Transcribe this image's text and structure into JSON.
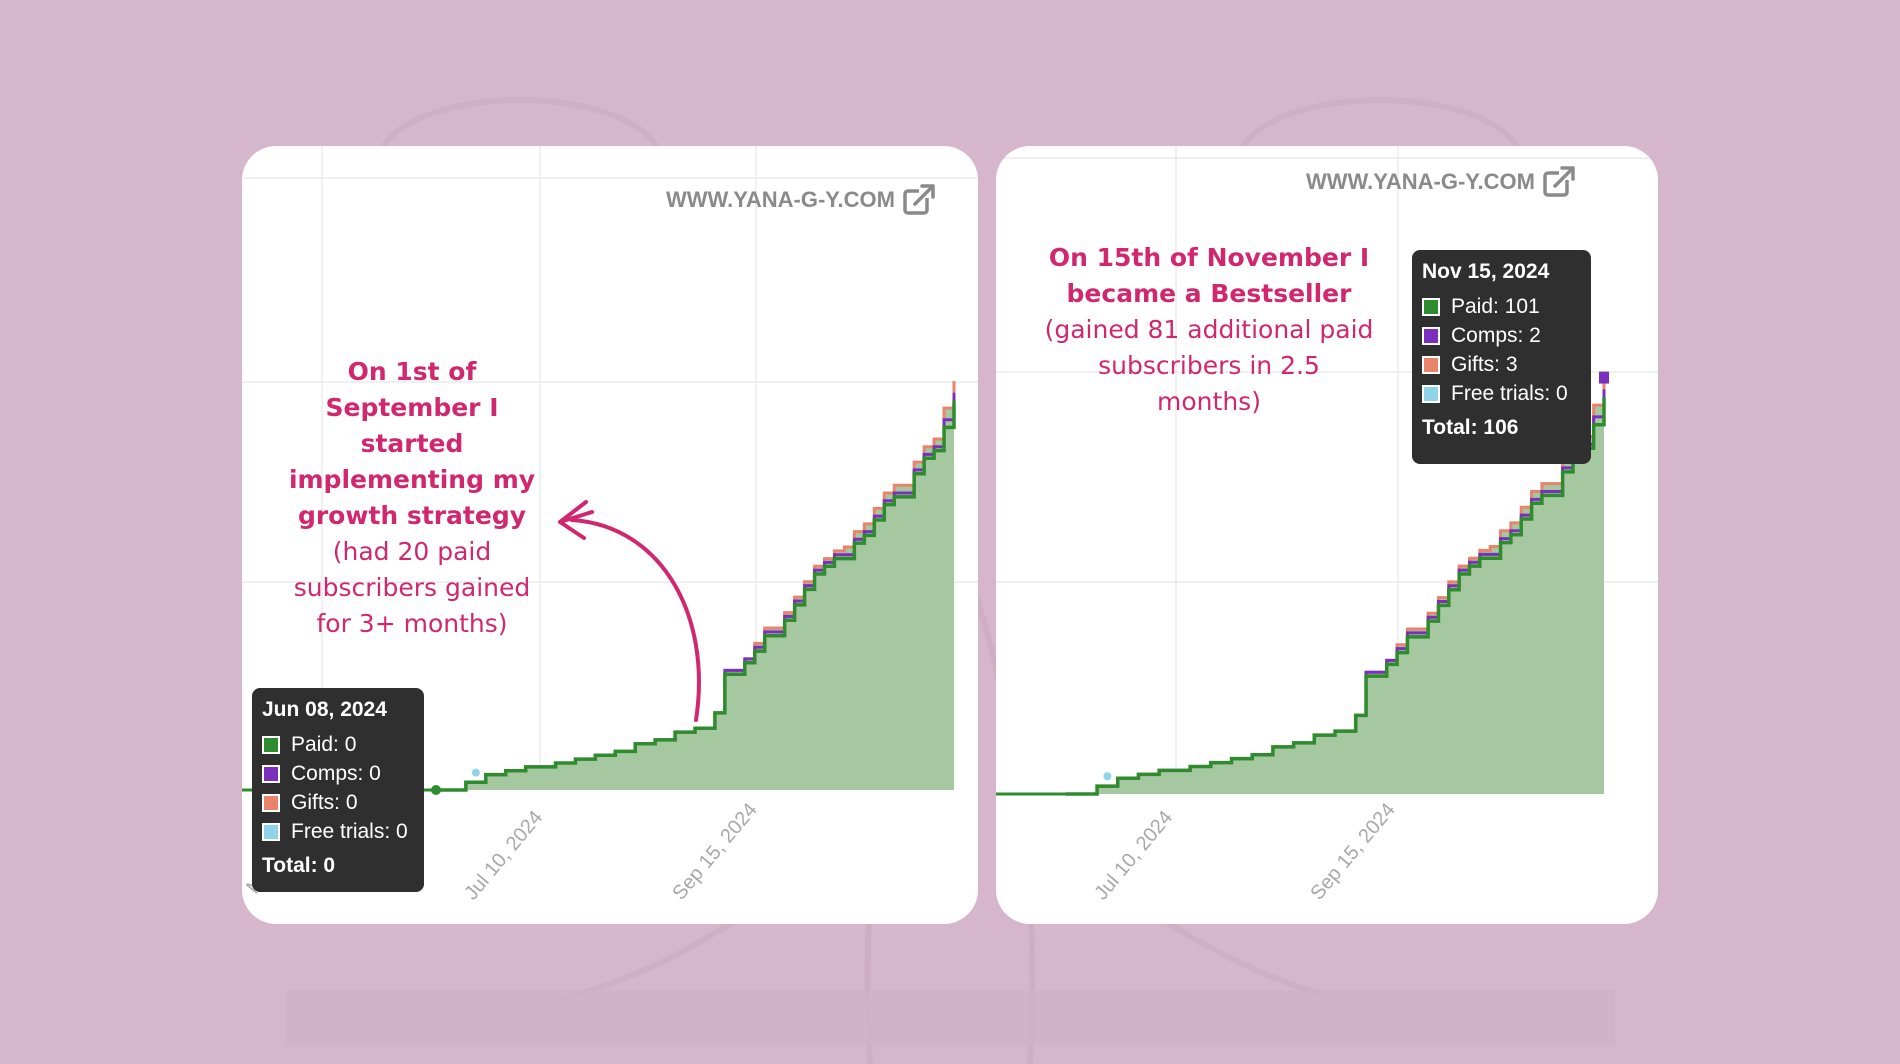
{
  "colors": {
    "background": "#d6b6cb",
    "card": "#ffffff",
    "paid": "#2e8b2e",
    "paid_fill": "#a6c8a0",
    "comps": "#7b2fbe",
    "gifts": "#e9846a",
    "free_trials": "#8fd3e8",
    "annotation": "#d1276f",
    "tooltip_bg": "#2f2f2f",
    "watermark": "#8a8a8a"
  },
  "watermark": "WWW.YANA-G-Y.COM",
  "icons": {
    "external_link": "external-link-icon"
  },
  "left_panel": {
    "annotation_bold": [
      "On 1st of",
      "September I started",
      "implementing my",
      "growth strategy"
    ],
    "annotation_sub": [
      "(had 20 paid",
      "subscribers gained",
      "for 3+ months)"
    ],
    "tooltip": {
      "date": "Jun 08, 2024",
      "paid": "Paid: 0",
      "comps": "Comps: 0",
      "gifts": "Gifts: 0",
      "free_trials": "Free trials: 0",
      "total": "Total: 0"
    },
    "x_ticks": [
      "May",
      "Jul 10, 2024",
      "Sep 15, 2024"
    ]
  },
  "right_panel": {
    "annotation_bold": [
      "On 15th of November I",
      "became a Bestseller"
    ],
    "annotation_sub": [
      "(gained 81 additional paid",
      "subscribers in 2.5",
      "months)"
    ],
    "tooltip": {
      "date": "Nov 15, 2024",
      "paid": "Paid: 101",
      "comps": "Comps: 2",
      "gifts": "Gifts: 3",
      "free_trials": "Free trials: 0",
      "total": "Total: 106"
    },
    "x_ticks": [
      "Jul 10, 2024",
      "Sep 15, 2024"
    ]
  },
  "chart_data": [
    {
      "type": "area",
      "series": [
        {
          "values": [
            0,
            0,
            0,
            2,
            2,
            4,
            4,
            5,
            5,
            6,
            6,
            6,
            7,
            7,
            8,
            8,
            9,
            9,
            10,
            10,
            12,
            12,
            13,
            13,
            15,
            15,
            16,
            16,
            20,
            30,
            30,
            33,
            36,
            40,
            40,
            44,
            48,
            52,
            56,
            58,
            60,
            60,
            64,
            66,
            70,
            74,
            76,
            76,
            82,
            86,
            88,
            94,
            101
          ]
        },
        {
          "values": [
            0,
            0,
            0,
            0,
            0,
            0,
            0,
            0,
            0,
            0,
            0,
            0,
            0,
            0,
            0,
            0,
            0,
            0,
            0,
            0,
            0,
            0,
            0,
            0,
            0,
            0,
            0,
            0,
            0,
            1,
            1,
            1,
            1,
            1,
            1,
            1,
            1,
            1,
            1,
            1,
            1,
            1,
            1,
            1,
            1,
            1,
            1,
            1,
            1,
            1,
            1,
            2,
            2
          ]
        },
        {
          "values": [
            0,
            0,
            0,
            0,
            0,
            0,
            0,
            0,
            0,
            0,
            0,
            0,
            0,
            0,
            0,
            0,
            0,
            0,
            0,
            0,
            0,
            0,
            0,
            0,
            0,
            0,
            0,
            0,
            0,
            0,
            0,
            0,
            1,
            1,
            1,
            1,
            1,
            1,
            1,
            1,
            1,
            2,
            2,
            2,
            2,
            2,
            2,
            2,
            2,
            2,
            2,
            3,
            3
          ]
        }
      ],
      "ylim": [
        0,
        112
      ]
    },
    {
      "type": "area",
      "series": [
        {
          "values": [
            0,
            0,
            0,
            2,
            2,
            4,
            4,
            5,
            5,
            6,
            6,
            6,
            7,
            7,
            8,
            8,
            9,
            9,
            10,
            10,
            12,
            12,
            13,
            13,
            15,
            15,
            16,
            16,
            20,
            30,
            30,
            33,
            36,
            40,
            40,
            44,
            48,
            52,
            56,
            58,
            60,
            60,
            64,
            66,
            70,
            74,
            76,
            76,
            82,
            86,
            88,
            94,
            101
          ]
        },
        {
          "values": [
            0,
            0,
            0,
            0,
            0,
            0,
            0,
            0,
            0,
            0,
            0,
            0,
            0,
            0,
            0,
            0,
            0,
            0,
            0,
            0,
            0,
            0,
            0,
            0,
            0,
            0,
            0,
            0,
            0,
            1,
            1,
            1,
            1,
            1,
            1,
            1,
            1,
            1,
            1,
            1,
            1,
            1,
            1,
            1,
            1,
            1,
            1,
            1,
            1,
            1,
            1,
            2,
            2
          ]
        },
        {
          "values": [
            0,
            0,
            0,
            0,
            0,
            0,
            0,
            0,
            0,
            0,
            0,
            0,
            0,
            0,
            0,
            0,
            0,
            0,
            0,
            0,
            0,
            0,
            0,
            0,
            0,
            0,
            0,
            0,
            0,
            0,
            0,
            0,
            1,
            1,
            1,
            1,
            1,
            1,
            1,
            1,
            1,
            2,
            2,
            2,
            2,
            2,
            2,
            2,
            2,
            2,
            2,
            3,
            3
          ]
        }
      ],
      "ylim": [
        0,
        112
      ]
    }
  ]
}
